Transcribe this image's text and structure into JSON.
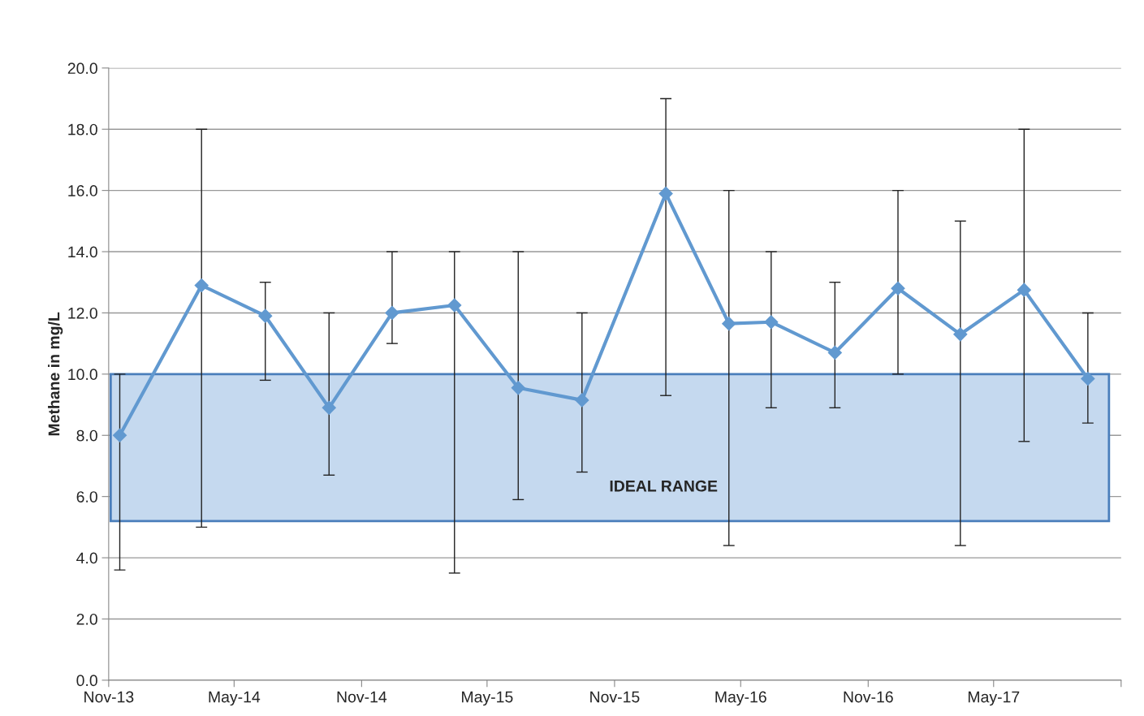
{
  "chart_data": {
    "type": "line",
    "ylabel": "Methane in mg/L",
    "x": [
      "2013-11-17",
      "2014-03-15",
      "2014-06-15",
      "2014-09-15",
      "2014-12-15",
      "2015-03-15",
      "2015-06-15",
      "2015-09-15",
      "2016-01-14",
      "2016-04-14",
      "2016-06-14",
      "2016-09-14",
      "2016-12-14",
      "2017-03-14",
      "2017-06-14",
      "2017-09-14"
    ],
    "series": [
      {
        "color": "#6199d0",
        "values": [
          8.0,
          12.9,
          11.9,
          8.9,
          12.0,
          12.25,
          9.55,
          9.15,
          15.9,
          11.65,
          11.7,
          10.7,
          12.8,
          11.3,
          12.75,
          9.85
        ],
        "errors": [
          [
            3.6,
            10
          ],
          [
            5.0,
            18
          ],
          [
            9.8,
            13
          ],
          [
            6.7,
            12
          ],
          [
            11,
            14
          ],
          [
            3.5,
            14
          ],
          [
            5.9,
            14
          ],
          [
            6.8,
            12
          ],
          [
            9.3,
            19
          ],
          [
            4.4,
            16
          ],
          [
            8.9,
            14
          ],
          [
            8.9,
            13
          ],
          [
            10,
            16
          ],
          [
            4.4,
            15
          ],
          [
            7.8,
            18
          ],
          [
            8.4,
            12
          ]
        ]
      }
    ],
    "bands": [
      {
        "axis": "y",
        "from": 5.2,
        "to": 10,
        "label": "IDEAL RANGE",
        "color": "#c5d9ef"
      }
    ],
    "xlim": [
      "2013-11-01",
      "2017-11-01"
    ],
    "xticks": [
      {
        "value": "2013-11-01",
        "label": "Nov-13"
      },
      {
        "value": "2014-05-01",
        "label": "May-14"
      },
      {
        "value": "2014-11-01",
        "label": "Nov-14"
      },
      {
        "value": "2015-05-01",
        "label": "May-15"
      },
      {
        "value": "2015-11-01",
        "label": "Nov-15"
      },
      {
        "value": "2016-05-01",
        "label": "May-16"
      },
      {
        "value": "2016-11-01",
        "label": "Nov-16"
      },
      {
        "value": "2017-05-01",
        "label": "May-17"
      },
      {
        "value": "2017-11-01",
        "label": null
      }
    ],
    "ylim": [
      0,
      20
    ],
    "yticks": [
      {
        "value": 0,
        "label": "0.0"
      },
      {
        "value": 2,
        "label": "2.0"
      },
      {
        "value": 4,
        "label": "4.0"
      },
      {
        "value": 6,
        "label": "6.0"
      },
      {
        "value": 8,
        "label": "8.0"
      },
      {
        "value": 10,
        "label": "10.0"
      },
      {
        "value": 12,
        "label": "12.0"
      },
      {
        "value": 14,
        "label": "14.0"
      },
      {
        "value": 16,
        "label": "16.0"
      },
      {
        "value": 18,
        "label": "18.0"
      },
      {
        "value": 20,
        "label": "20.0"
      }
    ],
    "grid": "y",
    "marker": "diamond",
    "line_style": "solid"
  }
}
